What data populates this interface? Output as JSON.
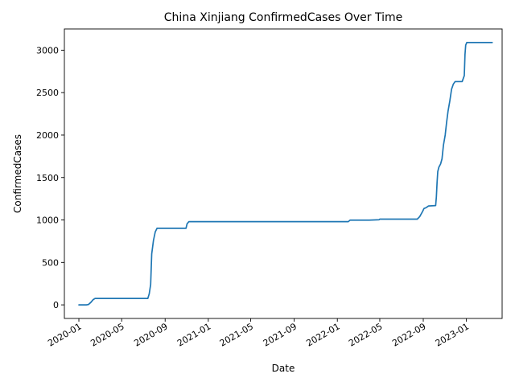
{
  "chart_data": {
    "type": "line",
    "title": "China Xinjiang ConfirmedCases Over Time",
    "xlabel": "Date",
    "ylabel": "ConfirmedCases",
    "xlim": [
      "2019-11-21",
      "2023-04-12"
    ],
    "ylim": [
      -160,
      3250
    ],
    "x_ticks": [
      "2020-01",
      "2020-05",
      "2020-09",
      "2021-01",
      "2021-05",
      "2021-09",
      "2022-01",
      "2022-05",
      "2022-09",
      "2023-01"
    ],
    "y_ticks": [
      0,
      500,
      1000,
      1500,
      2000,
      2500,
      3000
    ],
    "grid": false,
    "legend": "none",
    "series": [
      {
        "color": "#1f77b4",
        "points": [
          [
            "2020-01-01",
            0
          ],
          [
            "2020-01-22",
            0
          ],
          [
            "2020-01-28",
            4
          ],
          [
            "2020-02-04",
            30
          ],
          [
            "2020-02-10",
            60
          ],
          [
            "2020-02-16",
            76
          ],
          [
            "2020-07-14",
            76
          ],
          [
            "2020-07-18",
            130
          ],
          [
            "2020-07-22",
            240
          ],
          [
            "2020-07-25",
            600
          ],
          [
            "2020-07-30",
            760
          ],
          [
            "2020-08-04",
            860
          ],
          [
            "2020-08-09",
            902
          ],
          [
            "2020-10-30",
            902
          ],
          [
            "2020-11-02",
            955
          ],
          [
            "2020-11-07",
            980
          ],
          [
            "2022-02-01",
            980
          ],
          [
            "2022-02-06",
            998
          ],
          [
            "2022-04-01",
            998
          ],
          [
            "2022-04-29",
            1003
          ],
          [
            "2022-05-01",
            1010
          ],
          [
            "2022-08-15",
            1010
          ],
          [
            "2022-08-22",
            1040
          ],
          [
            "2022-08-30",
            1100
          ],
          [
            "2022-09-03",
            1135
          ],
          [
            "2022-09-09",
            1145
          ],
          [
            "2022-09-16",
            1165
          ],
          [
            "2022-10-06",
            1170
          ],
          [
            "2022-10-08",
            1270
          ],
          [
            "2022-10-10",
            1440
          ],
          [
            "2022-10-12",
            1570
          ],
          [
            "2022-10-15",
            1620
          ],
          [
            "2022-10-20",
            1660
          ],
          [
            "2022-10-24",
            1720
          ],
          [
            "2022-10-28",
            1880
          ],
          [
            "2022-11-02",
            2000
          ],
          [
            "2022-11-06",
            2150
          ],
          [
            "2022-11-10",
            2280
          ],
          [
            "2022-11-15",
            2400
          ],
          [
            "2022-11-20",
            2540
          ],
          [
            "2022-11-25",
            2600
          ],
          [
            "2022-11-30",
            2630
          ],
          [
            "2022-12-20",
            2630
          ],
          [
            "2022-12-26",
            2700
          ],
          [
            "2022-12-28",
            2950
          ],
          [
            "2022-12-30",
            3060
          ],
          [
            "2023-01-02",
            3090
          ],
          [
            "2023-03-15",
            3090
          ]
        ]
      }
    ]
  }
}
